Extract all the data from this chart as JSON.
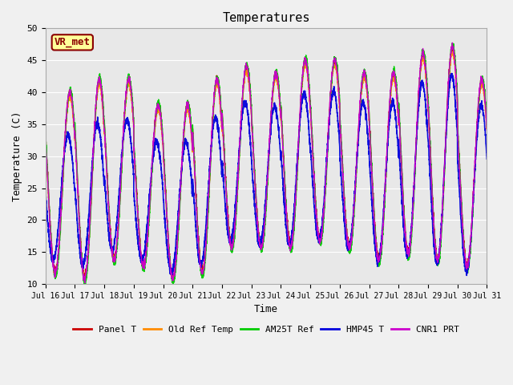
{
  "title": "Temperatures",
  "xlabel": "Time",
  "ylabel": "Temperature (C)",
  "ylim": [
    10,
    50
  ],
  "background_color": "#e8e8e8",
  "fig_background": "#f0f0f0",
  "annotation_text": "VR_met",
  "annotation_bg": "#ffff99",
  "annotation_border": "#8B0000",
  "series": [
    {
      "name": "Panel T",
      "color": "#cc0000",
      "lw": 1.0
    },
    {
      "name": "Old Ref Temp",
      "color": "#ff8c00",
      "lw": 1.0
    },
    {
      "name": "AM25T Ref",
      "color": "#00cc00",
      "lw": 1.0
    },
    {
      "name": "HMP45 T",
      "color": "#0000dd",
      "lw": 1.2
    },
    {
      "name": "CNR1 PRT",
      "color": "#cc00cc",
      "lw": 1.0
    }
  ],
  "xtick_labels": [
    "Jul 16",
    "Jul 17",
    "Jul 18",
    "Jul 19",
    "Jul 20",
    "Jul 21",
    "Jul 22",
    "Jul 23",
    "Jul 24",
    "Jul 25",
    "Jul 26",
    "Jul 27",
    "Jul 28",
    "Jul 29",
    "Jul 30",
    "Jul 31"
  ],
  "ytick_values": [
    10,
    15,
    20,
    25,
    30,
    35,
    40,
    45,
    50
  ],
  "grid_color": "#ffffff",
  "font_family": "DejaVu Sans Mono"
}
